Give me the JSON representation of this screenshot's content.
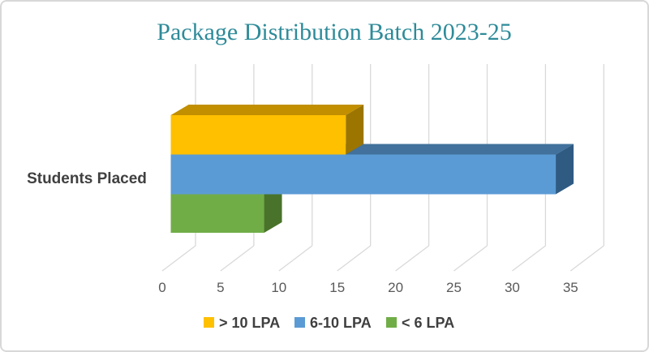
{
  "chart_data": {
    "type": "bar",
    "orientation": "horizontal",
    "style": "3d",
    "title": "Package Distribution Batch 2023-25",
    "title_color": "#2E8B99",
    "categories": [
      "Students Placed"
    ],
    "series": [
      {
        "name": "> 10 LPA",
        "values": [
          15
        ],
        "color": "#FFC000",
        "color_top": "#C28F00",
        "color_side": "#9C7500"
      },
      {
        "name": "6-10 LPA",
        "values": [
          33
        ],
        "color": "#5B9BD5",
        "color_top": "#41719C",
        "color_side": "#2F5B83"
      },
      {
        "name": "< 6 LPA",
        "values": [
          8
        ],
        "color": "#70AD47",
        "color_top": "#538234",
        "color_side": "#49732A"
      }
    ],
    "row_order_top_to_bottom": [
      "> 10 LPA",
      "6-10 LPA",
      "< 6 LPA"
    ],
    "x_ticks": [
      "0",
      "5",
      "10",
      "15",
      "20",
      "25",
      "30",
      "35"
    ],
    "xlim": [
      0,
      38
    ],
    "xlabel": "",
    "ylabel": "",
    "grid": true,
    "legend_position": "bottom"
  },
  "colors": {
    "gridline": "#D9D9D9",
    "tick_label": "#595959",
    "category_label": "#404040",
    "legend_label": "#3F3F3F",
    "frame_border": "#D8D8D8",
    "background": "#FFFFFF"
  }
}
